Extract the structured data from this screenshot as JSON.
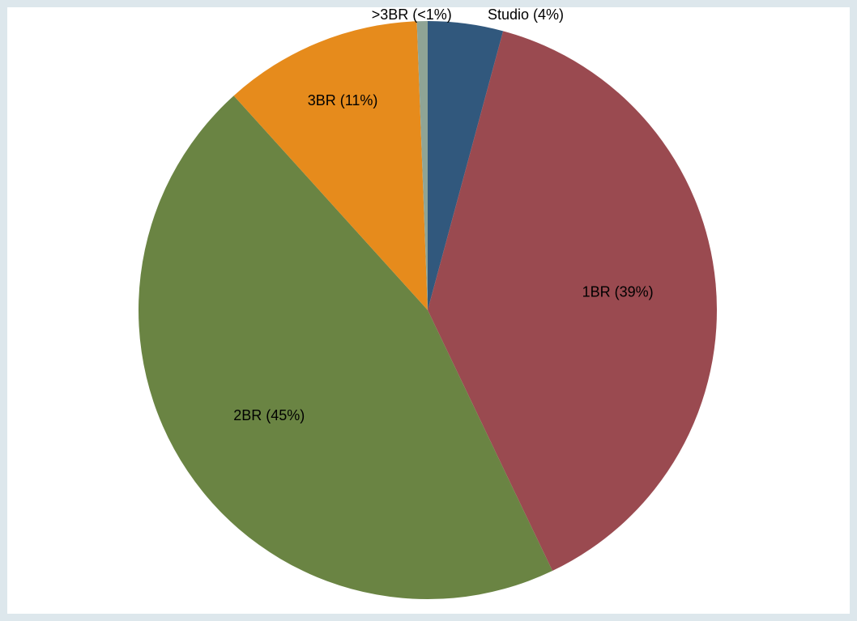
{
  "chart_data": {
    "type": "pie",
    "values": [
      4.2,
      38.7,
      45.4,
      11.1,
      0.6
    ],
    "value_labels": [
      "Studio (4%)",
      "1BR (39%)",
      "2BR (45%)",
      "3BR (11%)",
      ">3BR (<1%)"
    ],
    "colors": [
      "#31587d",
      "#9a4a50",
      "#6a8443",
      "#e68b1c",
      "#8fa495"
    ]
  }
}
